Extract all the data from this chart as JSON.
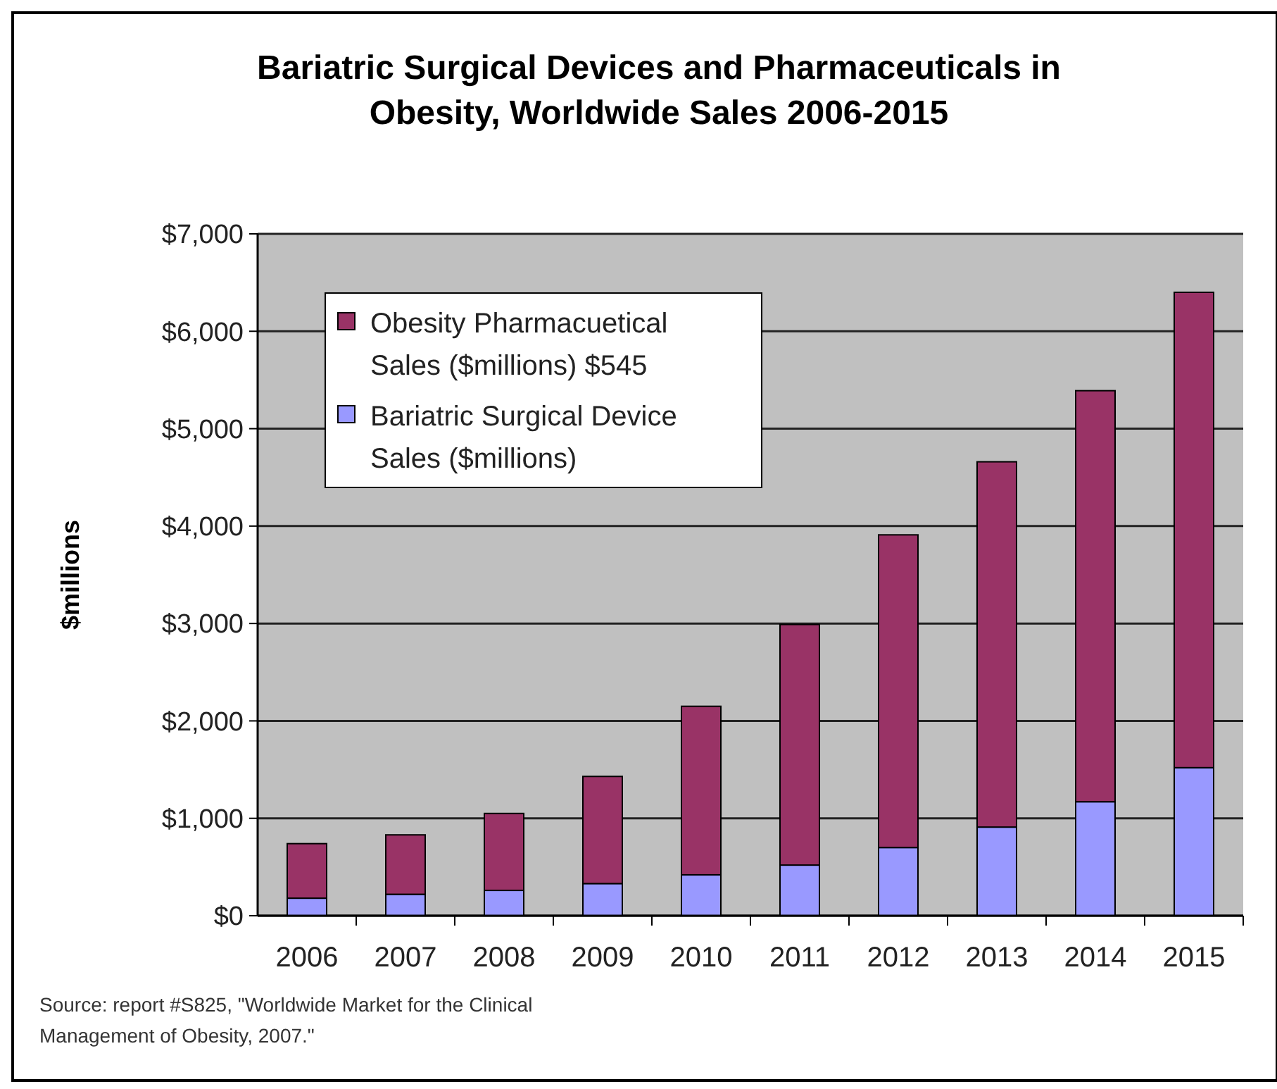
{
  "chart_data": {
    "type": "bar",
    "stacked": true,
    "title": "Bariatric Surgical Devices and Pharmaceuticals in Obesity, Worldwide Sales 2006-2015",
    "ylabel": "$millions",
    "categories": [
      "2006",
      "2007",
      "2008",
      "2009",
      "2010",
      "2011",
      "2012",
      "2013",
      "2014",
      "2015"
    ],
    "series": [
      {
        "name": "Bariatric Surgical Device Sales ($millions)",
        "color": "#9999ff",
        "values": [
          180,
          220,
          260,
          330,
          420,
          520,
          700,
          910,
          1170,
          1520
        ]
      },
      {
        "name": "Obesity Pharmacuetical Sales ($millions) $545",
        "color": "#993366",
        "values": [
          560,
          610,
          790,
          1100,
          1730,
          2470,
          3210,
          3750,
          4220,
          4880
        ]
      }
    ],
    "ylim": [
      0,
      7000
    ],
    "yticks": [
      {
        "value": 0,
        "label": "$0"
      },
      {
        "value": 1000,
        "label": "$1,000"
      },
      {
        "value": 2000,
        "label": "$2,000"
      },
      {
        "value": 3000,
        "label": "$3,000"
      },
      {
        "value": 4000,
        "label": "$4,000"
      },
      {
        "value": 5000,
        "label": "$5,000"
      },
      {
        "value": 6000,
        "label": "$6,000"
      },
      {
        "value": 7000,
        "label": "$7,000"
      }
    ],
    "grid": "y",
    "legend": "top left",
    "annotations": [
      "Source:  report #S825, \"Worldwide Market for the Clinical Management of Obesity, 2007.\""
    ]
  }
}
